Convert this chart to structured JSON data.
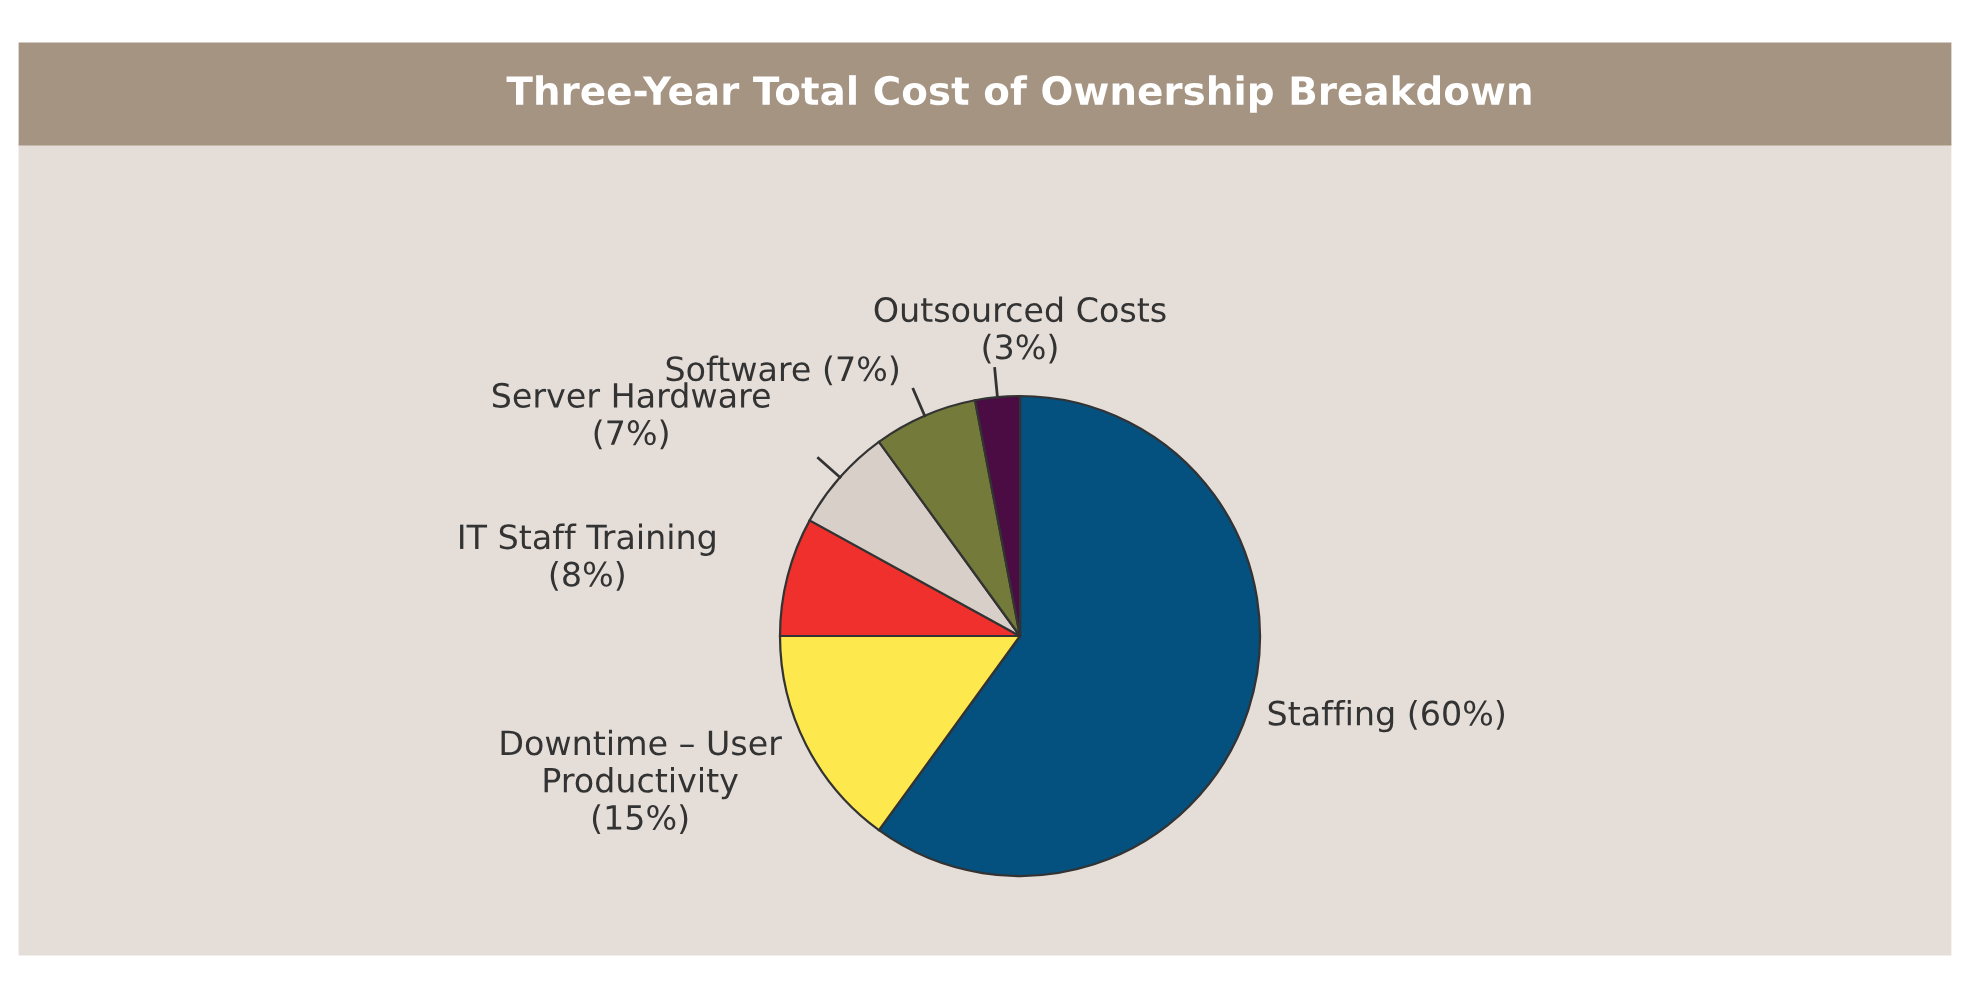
{
  "chart_data": {
    "type": "pie",
    "title": "Three-Year Total Cost of Ownership Breakdown",
    "categories": [
      "Staffing",
      "Downtime – User Productivity",
      "IT Staff Training",
      "Server Hardware",
      "Software",
      "Outsourced Costs"
    ],
    "values": [
      60,
      15,
      8,
      7,
      7,
      3
    ],
    "value_labels": [
      "(60%)",
      "(15%)",
      "(8%)",
      "(7%)",
      "(7%)",
      "(3%)"
    ],
    "colors": [
      "#04507e",
      "#fde84e",
      "#f0302c",
      "#d8d0c8",
      "#737a3a",
      "#4a0c42"
    ],
    "legend": false
  }
}
